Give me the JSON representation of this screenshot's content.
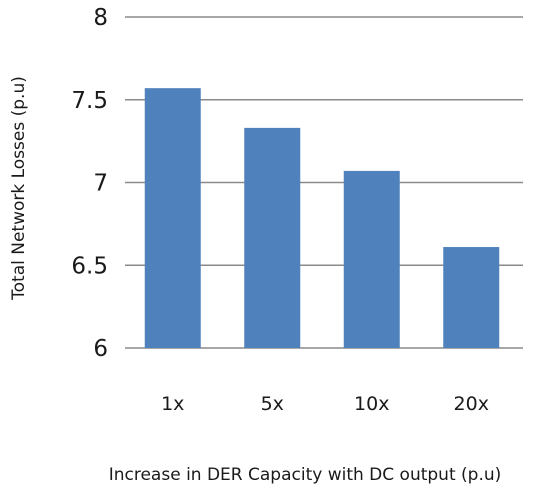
{
  "chart_data": {
    "type": "bar",
    "categories": [
      "1x",
      "5x",
      "10x",
      "20x"
    ],
    "values": [
      7.57,
      7.33,
      7.07,
      6.61
    ],
    "xlabel": "Increase in DER Capacity with DC output (p.u)",
    "ylabel": "Total Network Losses (p.u)",
    "ylim": [
      6,
      8
    ],
    "yticks": [
      "6",
      "6.5",
      "7",
      "7.5",
      "8"
    ],
    "ytick_values": [
      6,
      6.5,
      7,
      7.5,
      8
    ],
    "grid": true,
    "legend": "none",
    "colors": {
      "bar": "#4f81bd",
      "grid": "#8a8a8a"
    }
  }
}
